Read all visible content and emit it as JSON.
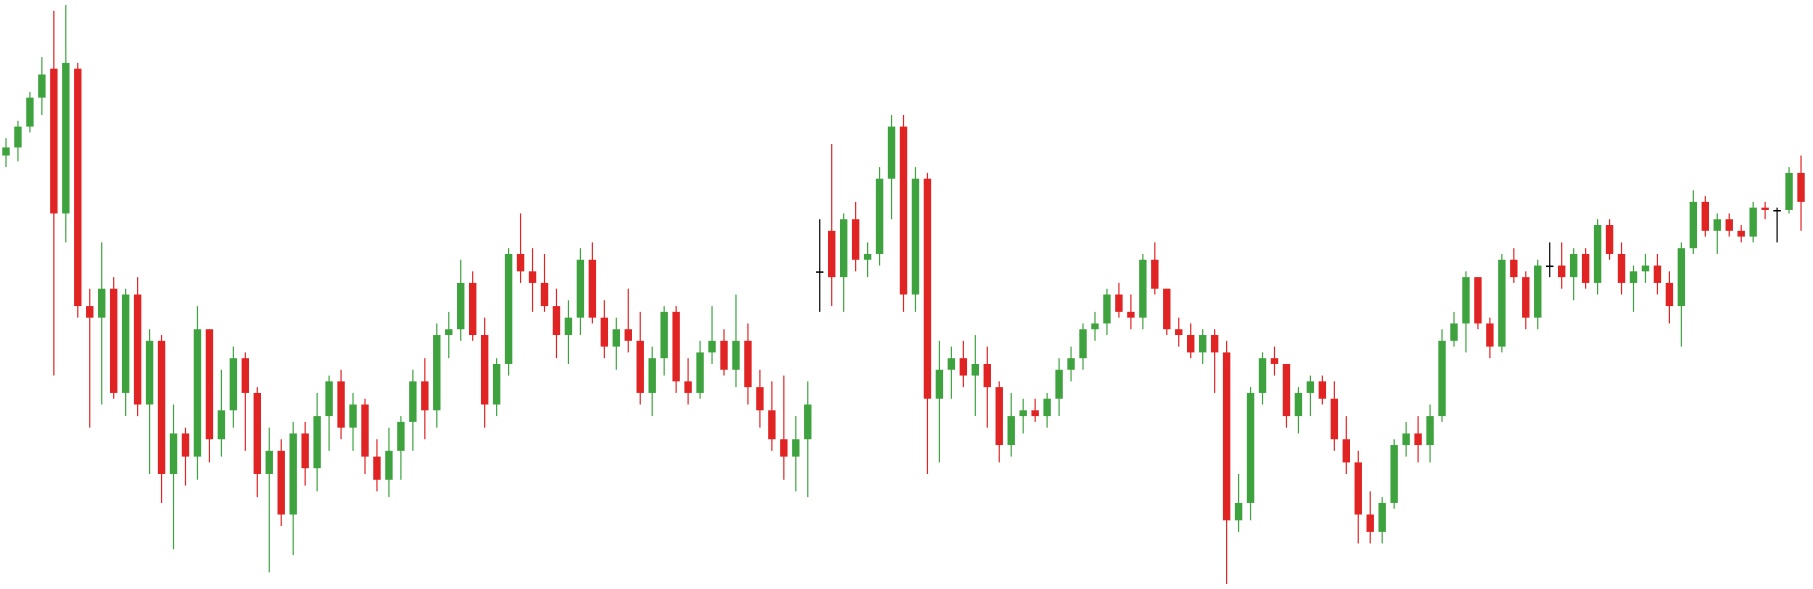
{
  "chart_data": {
    "type": "candlestick",
    "up_color": "#3ea33e",
    "down_color": "#e02424",
    "flat_color": "#000000",
    "open": [
      375,
      382,
      400,
      425,
      450,
      325,
      450,
      245,
      235,
      260,
      170,
      255,
      160,
      215,
      100,
      135,
      115,
      225,
      130,
      155,
      200,
      170,
      100,
      120,
      65,
      135,
      105,
      150,
      180,
      140,
      160,
      115,
      95,
      120,
      145,
      180,
      155,
      220,
      225,
      265,
      220,
      160,
      195,
      290,
      275,
      265,
      245,
      220,
      235,
      285,
      235,
      210,
      225,
      215,
      170,
      200,
      240,
      180,
      170,
      205,
      215,
      190,
      215,
      175,
      155,
      130,
      115,
      130,
      275,
      310,
      270,
      320,
      285,
      290,
      355,
      400,
      255,
      355,
      165,
      190,
      200,
      185,
      195,
      175,
      125,
      150,
      155,
      150,
      165,
      190,
      200,
      225,
      230,
      255,
      240,
      235,
      285,
      260,
      225,
      220,
      205,
      220,
      205,
      60,
      75,
      170,
      200,
      195,
      150,
      170,
      180,
      165,
      130,
      110,
      65,
      50,
      75,
      125,
      135,
      125,
      150,
      215,
      230,
      270,
      230,
      210,
      285,
      270,
      235,
      280,
      280,
      270,
      290,
      265,
      315,
      290,
      265,
      275,
      280,
      265,
      245,
      295,
      335,
      310,
      320,
      310,
      305,
      330,
      328,
      328,
      360
    ],
    "high": [
      390,
      405,
      430,
      460,
      500,
      505,
      455,
      260,
      300,
      270,
      260,
      270,
      225,
      220,
      160,
      140,
      245,
      225,
      190,
      210,
      205,
      175,
      140,
      130,
      145,
      145,
      170,
      185,
      190,
      170,
      165,
      130,
      140,
      150,
      190,
      200,
      230,
      240,
      285,
      275,
      235,
      200,
      295,
      325,
      295,
      290,
      260,
      250,
      295,
      300,
      250,
      235,
      260,
      240,
      210,
      245,
      245,
      200,
      215,
      245,
      225,
      255,
      230,
      190,
      180,
      185,
      150,
      180,
      320,
      385,
      325,
      335,
      300,
      365,
      410,
      410,
      365,
      360,
      215,
      210,
      215,
      220,
      210,
      180,
      170,
      165,
      165,
      170,
      200,
      210,
      230,
      240,
      260,
      265,
      255,
      290,
      300,
      260,
      235,
      230,
      225,
      225,
      215,
      100,
      175,
      205,
      210,
      195,
      175,
      185,
      185,
      180,
      150,
      120,
      85,
      80,
      130,
      145,
      150,
      160,
      225,
      240,
      275,
      270,
      235,
      290,
      295,
      275,
      285,
      300,
      300,
      295,
      295,
      320,
      320,
      300,
      280,
      290,
      290,
      275,
      300,
      345,
      340,
      325,
      325,
      315,
      335,
      335,
      330,
      365,
      375
    ],
    "low": [
      365,
      370,
      395,
      410,
      185,
      300,
      235,
      140,
      160,
      165,
      150,
      150,
      100,
      75,
      35,
      90,
      95,
      110,
      115,
      140,
      120,
      80,
      15,
      55,
      30,
      90,
      85,
      120,
      130,
      120,
      100,
      85,
      80,
      95,
      120,
      130,
      140,
      200,
      215,
      215,
      140,
      150,
      185,
      265,
      240,
      240,
      200,
      195,
      220,
      230,
      200,
      190,
      205,
      160,
      150,
      185,
      170,
      160,
      165,
      195,
      185,
      175,
      160,
      140,
      120,
      95,
      85,
      80,
      240,
      245,
      240,
      275,
      270,
      280,
      320,
      240,
      240,
      100,
      110,
      165,
      175,
      150,
      140,
      110,
      115,
      135,
      145,
      140,
      150,
      180,
      190,
      215,
      220,
      235,
      225,
      225,
      255,
      220,
      210,
      200,
      195,
      170,
      5,
      50,
      60,
      160,
      185,
      140,
      135,
      150,
      160,
      120,
      100,
      40,
      40,
      40,
      70,
      115,
      110,
      110,
      145,
      210,
      205,
      225,
      200,
      205,
      265,
      225,
      225,
      270,
      260,
      250,
      260,
      255,
      285,
      255,
      240,
      265,
      255,
      230,
      210,
      290,
      305,
      290,
      305,
      300,
      300,
      320,
      300,
      325,
      310
    ],
    "close": [
      382,
      400,
      425,
      445,
      325,
      455,
      245,
      235,
      260,
      170,
      255,
      160,
      215,
      100,
      135,
      115,
      225,
      130,
      155,
      200,
      170,
      100,
      120,
      65,
      135,
      105,
      150,
      180,
      140,
      160,
      115,
      95,
      120,
      145,
      180,
      155,
      220,
      225,
      265,
      220,
      160,
      195,
      290,
      275,
      265,
      245,
      220,
      235,
      285,
      235,
      210,
      225,
      215,
      170,
      200,
      240,
      180,
      170,
      205,
      215,
      190,
      215,
      175,
      155,
      130,
      115,
      130,
      160,
      275,
      270,
      320,
      285,
      290,
      355,
      400,
      255,
      355,
      165,
      190,
      200,
      185,
      195,
      175,
      125,
      150,
      155,
      150,
      165,
      190,
      200,
      225,
      230,
      255,
      240,
      235,
      285,
      260,
      225,
      220,
      205,
      220,
      205,
      60,
      75,
      170,
      200,
      195,
      150,
      170,
      180,
      165,
      130,
      110,
      65,
      50,
      75,
      125,
      135,
      125,
      150,
      215,
      230,
      270,
      230,
      210,
      285,
      270,
      235,
      280,
      280,
      270,
      290,
      265,
      315,
      290,
      265,
      275,
      280,
      265,
      245,
      295,
      335,
      310,
      320,
      310,
      305,
      330,
      328,
      328,
      360,
      335
    ]
  }
}
